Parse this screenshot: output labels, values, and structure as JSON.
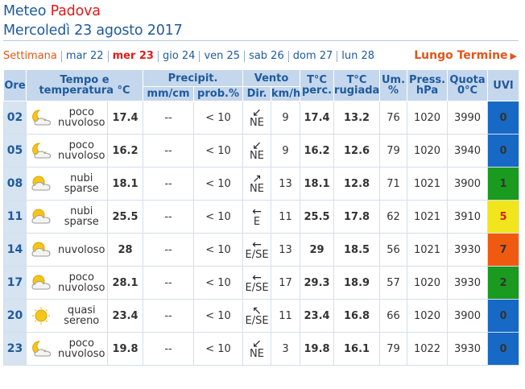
{
  "header": {
    "prefix": "Meteo",
    "city": "Padova",
    "date": "Mercoledì 23 agosto 2017"
  },
  "days_nav": {
    "week_label": "Settimana",
    "days": [
      "mar 22",
      "mer 23",
      "gio 24",
      "ven 25",
      "sab 26",
      "dom 27",
      "lun 28"
    ],
    "selected": "mer 23",
    "long_term": "Lungo Termine",
    "long_term_icon": "triangle-right-icon"
  },
  "table": {
    "headers": {
      "hour": "Ore",
      "temp_line1": "Tempo e",
      "temp_line2": "temperatura °C",
      "precip": "Precipit.",
      "mmcm": "mm/cm",
      "prob": "prob.%",
      "wind": "Vento",
      "dir": "Dir.",
      "kmh": "km/h",
      "perc_line1": "T°C",
      "perc_line2": "perc.",
      "dew_line1": "T°C",
      "dew_line2": "rugiada",
      "hum_line1": "Um.",
      "hum_line2": "%",
      "press_line1": "Press.",
      "press_line2": "hPa",
      "quota_line1": "Quota",
      "quota_line2": "0°C",
      "uvi": "UVI"
    },
    "rows": [
      {
        "hour": "02",
        "icon": "moon-cloud-icon",
        "sky1": "poco",
        "sky2": "nuvoloso",
        "temp": "17.4",
        "mm": "--",
        "prob": "< 10",
        "arrow": "↙",
        "dir": "NE",
        "kmh": "9",
        "perc": "17.4",
        "dew": "13.2",
        "hum": "76",
        "press": "1020",
        "quota": "3990",
        "uvi": "0",
        "uvi_class": "blue"
      },
      {
        "hour": "05",
        "icon": "moon-cloud-icon",
        "sky1": "poco",
        "sky2": "nuvoloso",
        "temp": "16.2",
        "mm": "--",
        "prob": "< 10",
        "arrow": "↙",
        "dir": "NE",
        "kmh": "9",
        "perc": "16.2",
        "dew": "12.6",
        "hum": "79",
        "press": "1020",
        "quota": "3940",
        "uvi": "0",
        "uvi_class": "blue"
      },
      {
        "hour": "08",
        "icon": "sun-cloud-icon",
        "sky1": "nubi",
        "sky2": "sparse",
        "temp": "18.1",
        "mm": "--",
        "prob": "< 10",
        "arrow": "↗",
        "dir": "NE",
        "kmh": "13",
        "perc": "18.1",
        "dew": "12.8",
        "hum": "71",
        "press": "1021",
        "quota": "3900",
        "uvi": "1",
        "uvi_class": "green"
      },
      {
        "hour": "11",
        "icon": "sun-cloud-icon",
        "sky1": "nubi",
        "sky2": "sparse",
        "temp": "25.5",
        "mm": "--",
        "prob": "< 10",
        "arrow": "←",
        "dir": "E",
        "kmh": "11",
        "perc": "25.5",
        "dew": "17.8",
        "hum": "62",
        "press": "1021",
        "quota": "3910",
        "uvi": "5",
        "uvi_class": "yellow"
      },
      {
        "hour": "14",
        "icon": "sun-cloud-icon",
        "sky1": "nuvoloso",
        "sky2": "",
        "temp": "28",
        "mm": "--",
        "prob": "< 10",
        "arrow": "←",
        "dir": "E/SE",
        "kmh": "13",
        "perc": "29",
        "dew": "18.5",
        "hum": "56",
        "press": "1021",
        "quota": "3930",
        "uvi": "7",
        "uvi_class": "orange"
      },
      {
        "hour": "17",
        "icon": "sun-cloud-icon",
        "sky1": "poco",
        "sky2": "nuvoloso",
        "temp": "28.1",
        "mm": "--",
        "prob": "< 10",
        "arrow": "←",
        "dir": "E/SE",
        "kmh": "17",
        "perc": "29.3",
        "dew": "18.9",
        "hum": "57",
        "press": "1020",
        "quota": "3930",
        "uvi": "2",
        "uvi_class": "green"
      },
      {
        "hour": "20",
        "icon": "sun-icon",
        "sky1": "quasi",
        "sky2": "sereno",
        "temp": "23.4",
        "mm": "--",
        "prob": "< 10",
        "arrow": "↖",
        "dir": "E/SE",
        "kmh": "11",
        "perc": "23.4",
        "dew": "16.8",
        "hum": "66",
        "press": "1020",
        "quota": "3900",
        "uvi": "0",
        "uvi_class": "blue"
      },
      {
        "hour": "23",
        "icon": "moon-cloud-icon",
        "sky1": "poco",
        "sky2": "nuvoloso",
        "temp": "19.8",
        "mm": "--",
        "prob": "< 10",
        "arrow": "↙",
        "dir": "NE",
        "kmh": "3",
        "perc": "19.8",
        "dew": "16.1",
        "hum": "79",
        "press": "1022",
        "quota": "3930",
        "uvi": "0",
        "uvi_class": "blue"
      }
    ]
  },
  "colors": {
    "brand_blue": "#1f5a9e",
    "accent_red": "#e01b1b",
    "accent_orange": "#e0561b",
    "temp_orange": "#ef6a10",
    "perceived_blue": "#2b57d9",
    "dew_green": "#2a8a2e",
    "header_bg": "#c5d7ec"
  }
}
